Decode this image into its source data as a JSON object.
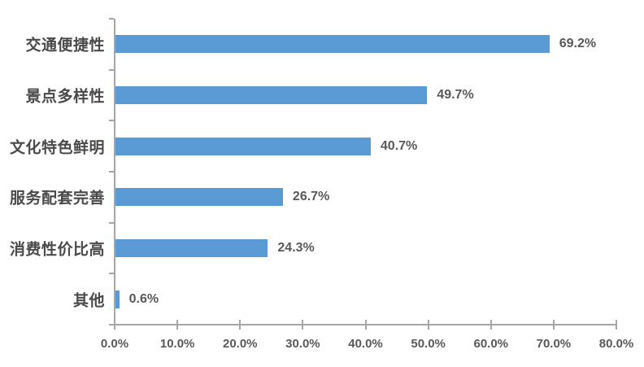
{
  "chart_data": {
    "type": "bar",
    "orientation": "horizontal",
    "title": "",
    "xlabel": "",
    "ylabel": "",
    "categories": [
      "交通便捷性",
      "景点多样性",
      "文化特色鲜明",
      "服务配套完善",
      "消费性价比高",
      "其他"
    ],
    "values": [
      69.2,
      49.7,
      40.7,
      26.7,
      24.3,
      0.6
    ],
    "data_labels": [
      "69.2%",
      "49.7%",
      "40.7%",
      "26.7%",
      "24.3%",
      "0.6%"
    ],
    "x_axis": {
      "min": 0,
      "max": 80,
      "step": 10,
      "tick_labels": [
        "0.0%",
        "10.0%",
        "20.0%",
        "30.0%",
        "40.0%",
        "50.0%",
        "60.0%",
        "70.0%",
        "80.0%"
      ]
    },
    "grid": false,
    "legend": false,
    "colors": {
      "bar": "#5B9BD5",
      "axis_line": "#A6A6A6",
      "value_text": "#595959",
      "axis_text": "#595959",
      "category_text": "#4A4A4A",
      "background": "#FFFFFF"
    }
  }
}
